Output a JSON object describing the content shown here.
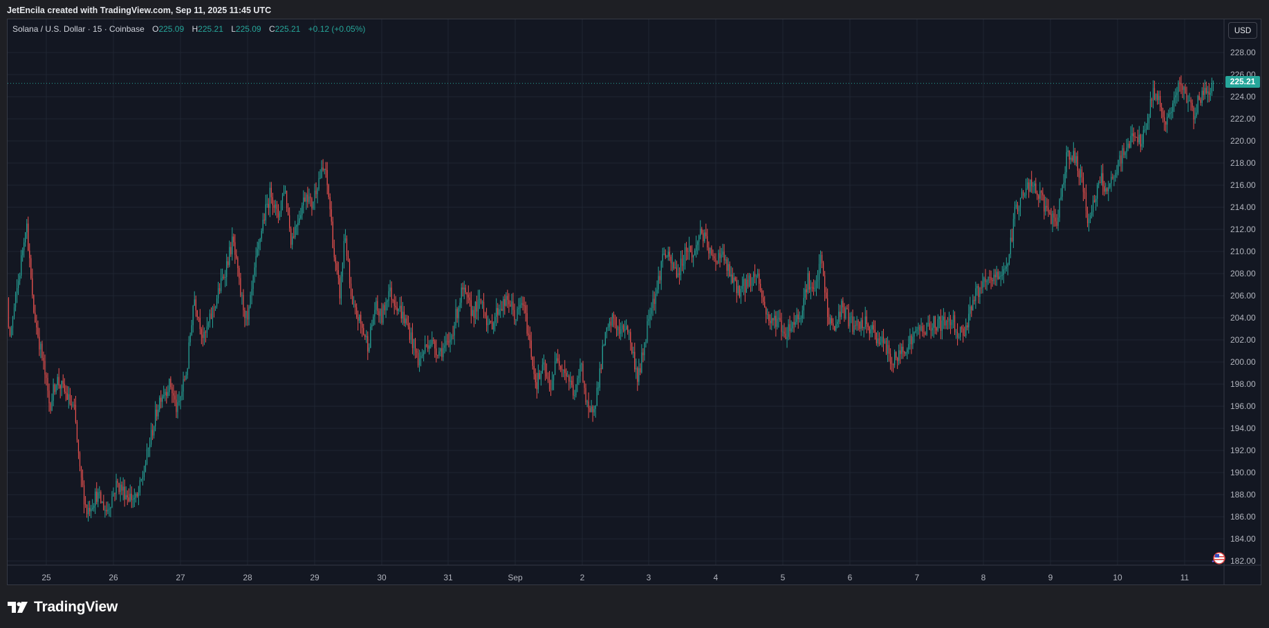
{
  "header": {
    "attribution": "JetEncila created with TradingView.com, Sep 11, 2025 11:45 UTC"
  },
  "legend": {
    "symbol": "Solana / U.S. Dollar · 15 · Coinbase",
    "o_label": "O",
    "o_value": "225.09",
    "h_label": "H",
    "h_value": "225.21",
    "l_label": "L",
    "l_value": "225.09",
    "c_label": "C",
    "c_value": "225.21",
    "change": "+0.12 (+0.05%)"
  },
  "toolbar": {
    "currency_label": "USD"
  },
  "last_price": "225.21",
  "brand": {
    "name": "TradingView",
    "icon": "tradingview-logo-icon"
  },
  "colors": {
    "up": "#26a69a",
    "down": "#ef5350",
    "background": "#131722",
    "grid": "#1f2532",
    "last_price_line": "#26a69a"
  },
  "chart_data": {
    "type": "candlestick",
    "symbol": "SOL/USD",
    "interval": "15",
    "y_ticks": [
      "228.00",
      "226.00",
      "224.00",
      "222.00",
      "220.00",
      "218.00",
      "216.00",
      "214.00",
      "212.00",
      "210.00",
      "208.00",
      "206.00",
      "204.00",
      "202.00",
      "200.00",
      "198.00",
      "196.00",
      "194.00",
      "192.00",
      "190.00",
      "188.00",
      "186.00",
      "184.00",
      "182.00"
    ],
    "x_ticks": [
      "25",
      "26",
      "27",
      "28",
      "29",
      "30",
      "31",
      "Sep",
      "2",
      "3",
      "4",
      "5",
      "6",
      "7",
      "8",
      "9",
      "10",
      "11"
    ],
    "ylim": [
      181.0,
      230.0
    ],
    "grid": true,
    "last_close": 225.21,
    "price_path": [
      [
        "24",
        208.5
      ],
      [
        "24.1",
        205.0
      ],
      [
        "24.2",
        207.5
      ],
      [
        "24.35",
        211.5
      ],
      [
        "24.45",
        202.0
      ],
      [
        "24.6",
        208.0
      ],
      [
        "24.7",
        213.0
      ],
      [
        "24.8",
        205.0
      ],
      [
        "24.95",
        200.0
      ],
      [
        "25.05",
        196.0
      ],
      [
        "25.15",
        198.5
      ],
      [
        "25.3",
        197.0
      ],
      [
        "25.42",
        195.5
      ],
      [
        "25.5",
        190.0
      ],
      [
        "25.6",
        186.5
      ],
      [
        "25.75",
        188.0
      ],
      [
        "25.9",
        186.5
      ],
      [
        "26.05",
        189.0
      ],
      [
        "26.2",
        188.0
      ],
      [
        "26.35",
        187.5
      ],
      [
        "26.45",
        190.0
      ],
      [
        "26.55",
        193.0
      ],
      [
        "26.7",
        197.0
      ],
      [
        "26.85",
        198.0
      ],
      [
        "26.95",
        195.5
      ],
      [
        "27.1",
        199.5
      ],
      [
        "27.2",
        206.0
      ],
      [
        "27.35",
        202.0
      ],
      [
        "27.5",
        205.0
      ],
      [
        "27.65",
        208.0
      ],
      [
        "27.78",
        211.0
      ],
      [
        "27.9",
        206.0
      ],
      [
        "28.0",
        203.5
      ],
      [
        "28.1",
        208.0
      ],
      [
        "28.22",
        212.5
      ],
      [
        "28.35",
        215.5
      ],
      [
        "28.45",
        213.0
      ],
      [
        "28.55",
        216.0
      ],
      [
        "28.65",
        211.0
      ],
      [
        "28.75",
        213.0
      ],
      [
        "28.88",
        215.5
      ],
      [
        "28.95",
        214.0
      ],
      [
        "29.05",
        216.5
      ],
      [
        "29.15",
        217.5
      ],
      [
        "29.22",
        214.5
      ],
      [
        "29.3",
        209.0
      ],
      [
        "29.38",
        206.0
      ],
      [
        "29.45",
        212.0
      ],
      [
        "29.55",
        205.0
      ],
      [
        "29.65",
        204.0
      ],
      [
        "29.8",
        201.5
      ],
      [
        "29.9",
        205.0
      ],
      [
        "30.0",
        204.0
      ],
      [
        "30.1",
        206.5
      ],
      [
        "30.25",
        205.0
      ],
      [
        "30.4",
        203.0
      ],
      [
        "30.55",
        200.0
      ],
      [
        "30.7",
        202.0
      ],
      [
        "30.85",
        201.0
      ],
      [
        "31.0",
        201.5
      ],
      [
        "31.1",
        204.0
      ],
      [
        "31.2",
        206.5
      ],
      [
        "31.35",
        204.5
      ],
      [
        "31.5",
        205.5
      ],
      [
        "31.6",
        203.0
      ],
      [
        "31.75",
        205.0
      ],
      [
        "31.9",
        205.5
      ],
      [
        "32.0",
        204.0
      ],
      [
        "32.1",
        205.5
      ],
      [
        "32.2",
        202.0
      ],
      [
        "32.3",
        198.0
      ],
      [
        "32.42",
        199.5
      ],
      [
        "32.5",
        197.5
      ],
      [
        "32.62",
        200.5
      ],
      [
        "32.75",
        199.0
      ],
      [
        "32.88",
        197.0
      ],
      [
        "32.98",
        200.0
      ],
      [
        "33.05",
        196.0
      ],
      [
        "33.1",
        195.0
      ],
      [
        "33.2",
        197.0
      ],
      [
        "33.32",
        202.0
      ],
      [
        "33.45",
        204.0
      ],
      [
        "33.55",
        202.5
      ],
      [
        "33.65",
        203.5
      ],
      [
        "33.75",
        200.5
      ],
      [
        "33.82",
        198.5
      ],
      [
        "33.9",
        201.0
      ],
      [
        "34.0",
        205.0
      ],
      [
        "34.1",
        206.5
      ],
      [
        "34.2",
        210.0
      ],
      [
        "34.3",
        209.0
      ],
      [
        "34.42",
        208.0
      ],
      [
        "34.55",
        210.5
      ],
      [
        "34.65",
        209.5
      ],
      [
        "34.75",
        212.0
      ],
      [
        "34.85",
        210.5
      ],
      [
        "34.95",
        209.0
      ],
      [
        "35.05",
        210.0
      ],
      [
        "35.15",
        208.5
      ],
      [
        "35.25",
        207.0
      ],
      [
        "35.35",
        206.5
      ],
      [
        "35.5",
        207.5
      ],
      [
        "35.6",
        208.0
      ],
      [
        "35.7",
        205.0
      ],
      [
        "35.8",
        203.5
      ],
      [
        "35.9",
        204.0
      ],
      [
        "36.0",
        202.5
      ],
      [
        "36.12",
        203.5
      ],
      [
        "36.25",
        204.5
      ],
      [
        "36.35",
        207.5
      ],
      [
        "36.45",
        206.0
      ],
      [
        "36.55",
        209.5
      ],
      [
        "36.65",
        204.0
      ],
      [
        "36.75",
        203.0
      ],
      [
        "36.85",
        205.0
      ],
      [
        "36.95",
        204.0
      ],
      [
        "37.05",
        203.0
      ],
      [
        "37.2",
        203.5
      ],
      [
        "37.35",
        202.5
      ],
      [
        "37.5",
        201.5
      ],
      [
        "37.6",
        200.0
      ],
      [
        "37.7",
        200.5
      ],
      [
        "37.8",
        201.5
      ],
      [
        "37.9",
        202.0
      ],
      [
        "38.0",
        203.0
      ],
      [
        "38.12",
        203.0
      ],
      [
        "38.25",
        203.5
      ],
      [
        "38.4",
        203.5
      ],
      [
        "38.5",
        204.0
      ],
      [
        "38.6",
        202.5
      ],
      [
        "38.7",
        203.0
      ],
      [
        "38.8",
        205.5
      ],
      [
        "38.9",
        206.5
      ],
      [
        "39.0",
        207.0
      ],
      [
        "39.1",
        207.5
      ],
      [
        "39.25",
        208.0
      ],
      [
        "39.35",
        209.5
      ],
      [
        "39.45",
        214.0
      ],
      [
        "39.55",
        215.0
      ],
      [
        "39.65",
        216.0
      ],
      [
        "39.75",
        215.5
      ],
      [
        "39.85",
        214.5
      ],
      [
        "39.95",
        213.5
      ],
      [
        "40.05",
        212.0
      ],
      [
        "40.12",
        215.0
      ],
      [
        "40.22",
        219.0
      ],
      [
        "40.32",
        218.5
      ],
      [
        "40.42",
        217.0
      ],
      [
        "40.52",
        213.0
      ],
      [
        "40.62",
        214.5
      ],
      [
        "40.72",
        216.5
      ],
      [
        "40.82",
        215.5
      ],
      [
        "40.92",
        216.5
      ],
      [
        "41.02",
        218.5
      ],
      [
        "41.12",
        219.5
      ],
      [
        "41.22",
        221.0
      ],
      [
        "41.32",
        219.5
      ],
      [
        "41.42",
        222.0
      ],
      [
        "41.5",
        224.5
      ],
      [
        "41.6",
        223.5
      ],
      [
        "41.7",
        221.5
      ],
      [
        "41.8",
        223.5
      ],
      [
        "41.9",
        225.0
      ],
      [
        "42.0",
        224.0
      ],
      [
        "42.1",
        222.5
      ],
      [
        "42.2",
        224.0
      ],
      [
        "42.3",
        224.5
      ],
      [
        "42.4",
        225.21
      ]
    ]
  }
}
